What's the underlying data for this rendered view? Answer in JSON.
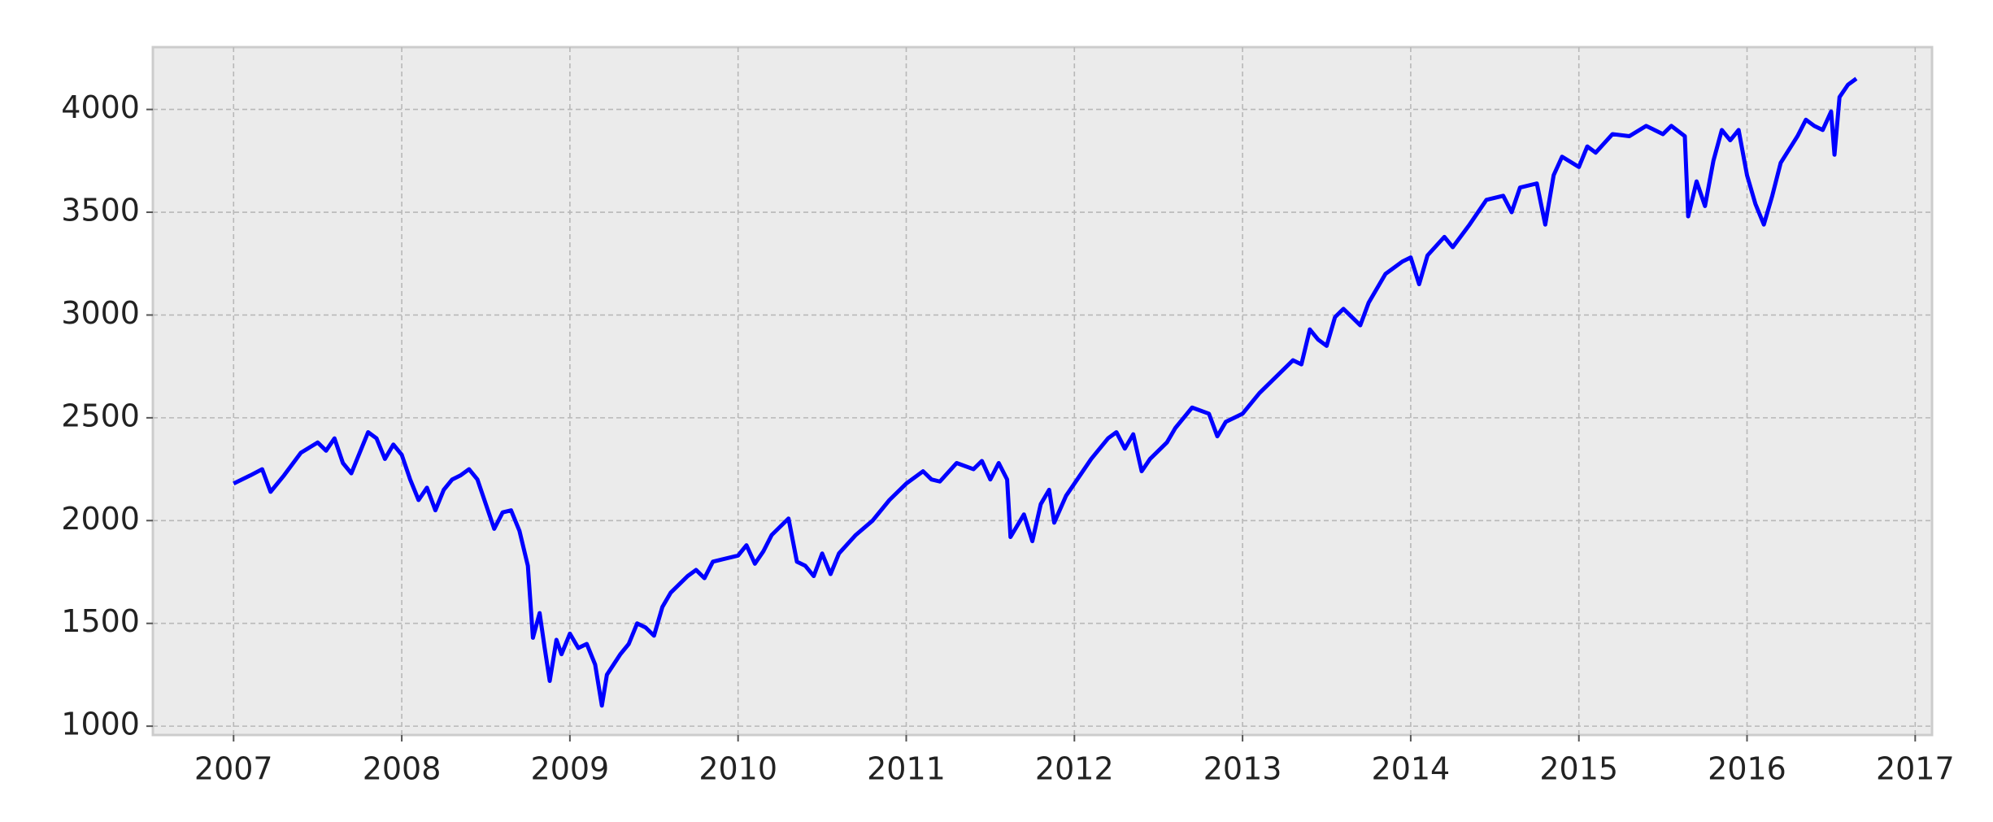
{
  "chart_data": {
    "type": "line",
    "x": [
      2007.0,
      2007.1,
      2007.17,
      2007.22,
      2007.3,
      2007.4,
      2007.5,
      2007.55,
      2007.6,
      2007.65,
      2007.7,
      2007.75,
      2007.8,
      2007.85,
      2007.9,
      2007.95,
      2008.0,
      2008.05,
      2008.1,
      2008.15,
      2008.2,
      2008.25,
      2008.3,
      2008.35,
      2008.4,
      2008.45,
      2008.5,
      2008.55,
      2008.6,
      2008.65,
      2008.7,
      2008.75,
      2008.78,
      2008.82,
      2008.85,
      2008.88,
      2008.92,
      2008.95,
      2009.0,
      2009.05,
      2009.1,
      2009.15,
      2009.19,
      2009.22,
      2009.3,
      2009.35,
      2009.4,
      2009.45,
      2009.5,
      2009.55,
      2009.6,
      2009.7,
      2009.75,
      2009.8,
      2009.85,
      2009.9,
      2010.0,
      2010.05,
      2010.1,
      2010.15,
      2010.2,
      2010.3,
      2010.35,
      2010.4,
      2010.45,
      2010.5,
      2010.55,
      2010.6,
      2010.7,
      2010.8,
      2010.9,
      2011.0,
      2011.1,
      2011.15,
      2011.2,
      2011.3,
      2011.4,
      2011.45,
      2011.5,
      2011.55,
      2011.6,
      2011.62,
      2011.7,
      2011.75,
      2011.8,
      2011.85,
      2011.88,
      2011.95,
      2012.0,
      2012.1,
      2012.2,
      2012.25,
      2012.3,
      2012.35,
      2012.4,
      2012.45,
      2012.55,
      2012.6,
      2012.7,
      2012.8,
      2012.85,
      2012.9,
      2013.0,
      2013.1,
      2013.2,
      2013.3,
      2013.35,
      2013.4,
      2013.45,
      2013.5,
      2013.55,
      2013.6,
      2013.7,
      2013.75,
      2013.85,
      2013.95,
      2014.0,
      2014.05,
      2014.1,
      2014.2,
      2014.25,
      2014.35,
      2014.45,
      2014.55,
      2014.6,
      2014.65,
      2014.75,
      2014.8,
      2014.85,
      2014.9,
      2015.0,
      2015.05,
      2015.1,
      2015.2,
      2015.3,
      2015.4,
      2015.5,
      2015.55,
      2015.63,
      2015.65,
      2015.7,
      2015.75,
      2015.8,
      2015.85,
      2015.9,
      2015.95,
      2016.0,
      2016.05,
      2016.1,
      2016.15,
      2016.2,
      2016.3,
      2016.35,
      2016.4,
      2016.45,
      2016.5,
      2016.52,
      2016.55,
      2016.6,
      2016.65
    ],
    "series": [
      {
        "color": "#0000ff",
        "values": [
          2180,
          2220,
          2250,
          2140,
          2220,
          2330,
          2380,
          2340,
          2400,
          2280,
          2230,
          2330,
          2430,
          2400,
          2300,
          2370,
          2320,
          2200,
          2100,
          2160,
          2050,
          2150,
          2200,
          2220,
          2250,
          2200,
          2080,
          1960,
          2040,
          2050,
          1950,
          1780,
          1430,
          1550,
          1380,
          1220,
          1420,
          1350,
          1450,
          1380,
          1400,
          1300,
          1100,
          1250,
          1350,
          1400,
          1500,
          1480,
          1440,
          1580,
          1650,
          1730,
          1760,
          1720,
          1800,
          1810,
          1830,
          1880,
          1790,
          1850,
          1930,
          2010,
          1800,
          1780,
          1730,
          1840,
          1740,
          1840,
          1930,
          2000,
          2100,
          2180,
          2240,
          2200,
          2190,
          2280,
          2250,
          2290,
          2200,
          2280,
          2200,
          1920,
          2030,
          1900,
          2080,
          2150,
          1990,
          2120,
          2180,
          2300,
          2400,
          2430,
          2350,
          2420,
          2240,
          2300,
          2380,
          2450,
          2550,
          2520,
          2410,
          2480,
          2520,
          2620,
          2700,
          2780,
          2760,
          2930,
          2880,
          2850,
          2990,
          3030,
          2950,
          3060,
          3200,
          3260,
          3280,
          3150,
          3290,
          3380,
          3330,
          3440,
          3560,
          3580,
          3500,
          3620,
          3640,
          3440,
          3680,
          3770,
          3720,
          3820,
          3790,
          3880,
          3870,
          3920,
          3880,
          3920,
          3870,
          3480,
          3650,
          3530,
          3750,
          3900,
          3850,
          3900,
          3680,
          3540,
          3440,
          3580,
          3740,
          3870,
          3950,
          3920,
          3900,
          3990,
          3780,
          4060,
          4120,
          4150
        ]
      }
    ],
    "xlim": [
      2006.52,
      2017.1
    ],
    "xticks": [
      2007,
      2008,
      2009,
      2010,
      2011,
      2012,
      2013,
      2014,
      2015,
      2016,
      2017
    ],
    "ylim": [
      957,
      4303
    ],
    "yticks": [
      1000,
      1500,
      2000,
      2500,
      3000,
      3500,
      4000
    ],
    "grid": true
  }
}
